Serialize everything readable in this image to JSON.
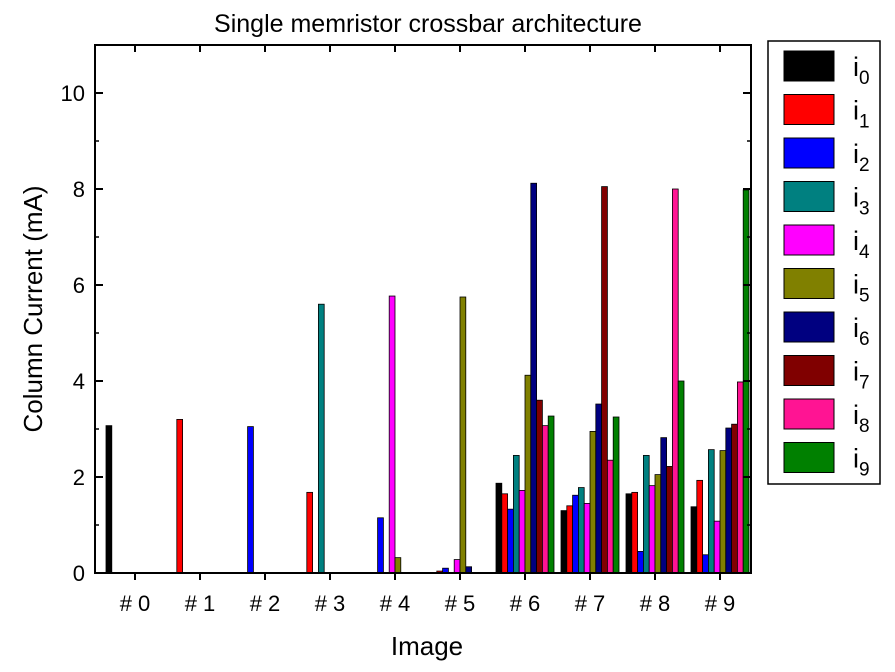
{
  "chart_data": {
    "type": "bar",
    "title": "Single memristor crossbar architecture",
    "xlabel": "Image",
    "ylabel": "Column Current (mA)",
    "ylim": [
      0,
      11
    ],
    "yticks": [
      0,
      2,
      4,
      6,
      8,
      10
    ],
    "categories": [
      "# 0",
      "# 1",
      "# 2",
      "# 3",
      "# 4",
      "# 5",
      "# 6",
      "# 7",
      "# 8",
      "# 9"
    ],
    "legend_position": "outside-right",
    "series": [
      {
        "name": "i",
        "sub": "0",
        "color": "#000000",
        "values": [
          3.07,
          0,
          0,
          0,
          0,
          0,
          1.87,
          1.3,
          1.65,
          1.38
        ]
      },
      {
        "name": "i",
        "sub": "1",
        "color": "#ff0000",
        "values": [
          0,
          3.2,
          0,
          1.68,
          0,
          0.04,
          1.65,
          1.4,
          1.68,
          1.93
        ]
      },
      {
        "name": "i",
        "sub": "2",
        "color": "#0000ff",
        "values": [
          0,
          0,
          3.05,
          0,
          1.15,
          0.1,
          1.33,
          1.62,
          0.45,
          0.38
        ]
      },
      {
        "name": "i",
        "sub": "3",
        "color": "#008080",
        "values": [
          0,
          0,
          0,
          5.6,
          0,
          0,
          2.45,
          1.78,
          2.45,
          2.57
        ]
      },
      {
        "name": "i",
        "sub": "4",
        "color": "#ff00ff",
        "values": [
          0,
          0,
          0,
          0,
          5.77,
          0.28,
          1.72,
          1.45,
          1.82,
          1.08
        ]
      },
      {
        "name": "i",
        "sub": "5",
        "color": "#808000",
        "values": [
          0,
          0,
          0,
          0,
          0.32,
          5.75,
          4.12,
          2.95,
          2.05,
          2.55
        ]
      },
      {
        "name": "i",
        "sub": "6",
        "color": "#000080",
        "values": [
          0,
          0,
          0,
          0,
          0,
          0.13,
          8.12,
          3.52,
          2.82,
          3.02
        ]
      },
      {
        "name": "i",
        "sub": "7",
        "color": "#800000",
        "values": [
          0,
          0,
          0,
          0,
          0,
          0,
          3.6,
          8.05,
          2.22,
          3.1
        ]
      },
      {
        "name": "i",
        "sub": "8",
        "color": "#ff1493",
        "values": [
          0,
          0,
          0,
          0,
          0,
          0,
          3.07,
          2.35,
          8.0,
          3.98
        ]
      },
      {
        "name": "i",
        "sub": "9",
        "color": "#008000",
        "values": [
          0,
          0,
          0,
          0,
          0,
          0,
          3.27,
          3.25,
          4.0,
          7.98
        ]
      }
    ]
  }
}
